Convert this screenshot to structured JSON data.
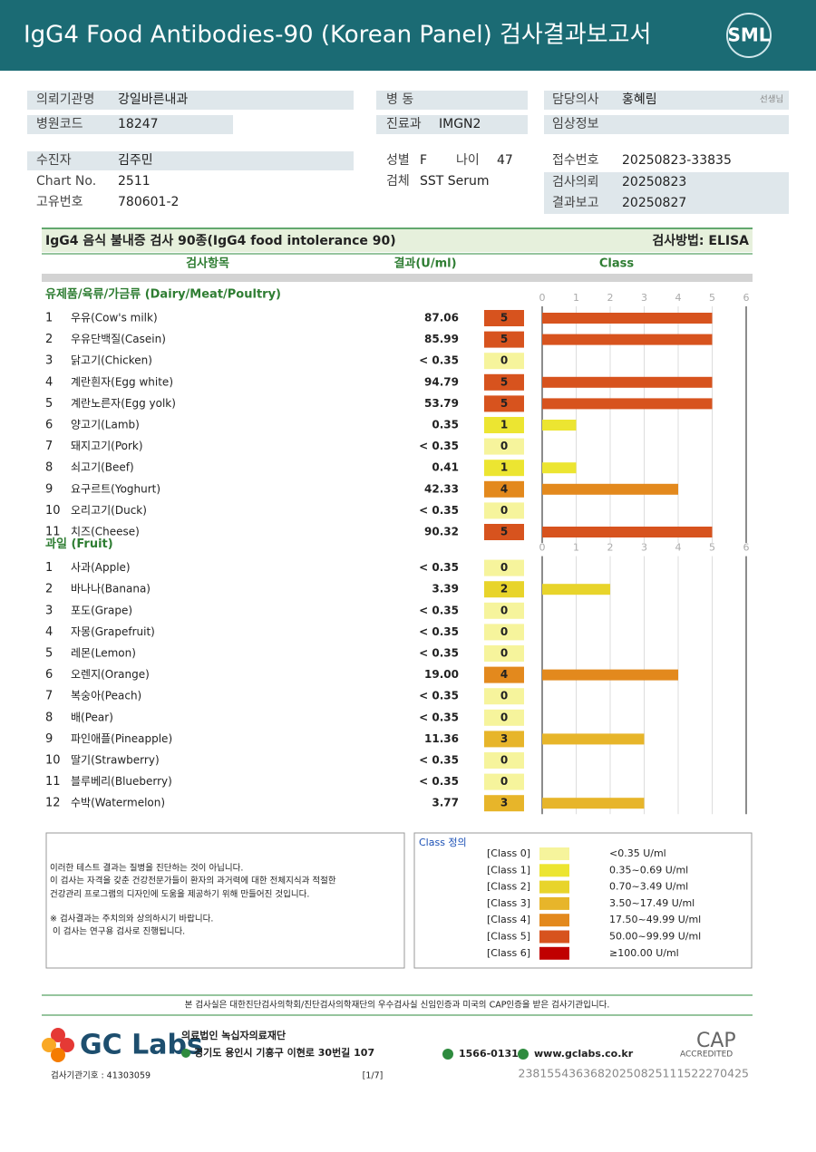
{
  "header": {
    "title": "IgG4 Food Antibodies-90 (Korean Panel) 검사결과보고서",
    "logo": "SML"
  },
  "info": [
    {
      "label": "의뢰기관명",
      "value": "강일바른내과"
    },
    {
      "label": "병원코드",
      "value": "18247"
    },
    {
      "label": "수진자",
      "value": "김주민"
    },
    {
      "label": "Chart No.",
      "value": "2511"
    },
    {
      "label": "고유번호",
      "value": "780601-2"
    },
    {
      "label": "병 동"
    },
    {
      "label": "진료과",
      "value": "IMGN2"
    },
    {
      "label": "성별",
      "value": "F"
    },
    {
      "label": "나이",
      "value": "47"
    },
    {
      "label": "검체",
      "value": "SST Serum"
    },
    {
      "label": "담당의사",
      "value": "홍혜림",
      "suffix": "선생님"
    },
    {
      "label": "임상정보"
    },
    {
      "label": "접수번호",
      "value": "20250823-33835"
    },
    {
      "label": "검사의뢰",
      "value": "20250823"
    },
    {
      "label": "결과보고",
      "value": "20250827"
    }
  ],
  "test": {
    "title": "IgG4 음식 불내증 검사 90종(IgG4 food intolerance 90)",
    "method": "검사방법: ELISA",
    "columns": [
      "검사항목",
      "결과(U/ml)",
      "Class"
    ],
    "axis_ticks": [
      0,
      1,
      2,
      3,
      4,
      5,
      6
    ],
    "groups": [
      {
        "name": "유제품/육류/가금류 (Dairy/Meat/Poultry)",
        "items": [
          {
            "no": 1,
            "name": "우유(Cow's milk)",
            "result": 87.06,
            "class": 5
          },
          {
            "no": 2,
            "name": "우유단백질(Casein)",
            "result": 85.99,
            "class": 5
          },
          {
            "no": 3,
            "name": "닭고기(Chicken)",
            "result": "< 0.35",
            "class": 0
          },
          {
            "no": 4,
            "name": "계란흰자(Egg white)",
            "result": 94.79,
            "class": 5
          },
          {
            "no": 5,
            "name": "계란노른자(Egg yolk)",
            "result": 53.79,
            "class": 5
          },
          {
            "no": 6,
            "name": "양고기(Lamb)",
            "result": 0.35,
            "class": 1
          },
          {
            "no": 7,
            "name": "돼지고기(Pork)",
            "result": "< 0.35",
            "class": 0
          },
          {
            "no": 8,
            "name": "쇠고기(Beef)",
            "result": 0.41,
            "class": 1
          },
          {
            "no": 9,
            "name": "요구르트(Yoghurt)",
            "result": 42.33,
            "class": 4
          },
          {
            "no": 10,
            "name": "오리고기(Duck)",
            "result": "< 0.35",
            "class": 0
          },
          {
            "no": 11,
            "name": "치즈(Cheese)",
            "result": 90.32,
            "class": 5
          }
        ]
      },
      {
        "name": "과일 (Fruit)",
        "items": [
          {
            "no": 1,
            "name": "사과(Apple)",
            "result": "< 0.35",
            "class": 0
          },
          {
            "no": 2,
            "name": "바나나(Banana)",
            "result": 3.39,
            "class": 2
          },
          {
            "no": 3,
            "name": "포도(Grape)",
            "result": "< 0.35",
            "class": 0
          },
          {
            "no": 4,
            "name": "자몽(Grapefruit)",
            "result": "< 0.35",
            "class": 0
          },
          {
            "no": 5,
            "name": "레몬(Lemon)",
            "result": "< 0.35",
            "class": 0
          },
          {
            "no": 6,
            "name": "오렌지(Orange)",
            "result": "19.00",
            "class": 4
          },
          {
            "no": 7,
            "name": "복숭아(Peach)",
            "result": "< 0.35",
            "class": 0
          },
          {
            "no": 8,
            "name": "배(Pear)",
            "result": "< 0.35",
            "class": 0
          },
          {
            "no": 9,
            "name": "파인애플(Pineapple)",
            "result": 11.36,
            "class": 3
          },
          {
            "no": 10,
            "name": "딸기(Strawberry)",
            "result": "< 0.35",
            "class": 0
          },
          {
            "no": 11,
            "name": "블루베리(Blueberry)",
            "result": "< 0.35",
            "class": 0
          },
          {
            "no": 12,
            "name": "수박(Watermelon)",
            "result": 3.77,
            "class": 3
          }
        ]
      }
    ]
  },
  "notes": [
    "이러한 테스트 결과는 질병을 진단하는 것이 아닙니다.",
    "이 검사는 자격을 갖춘 건강전문가들이 환자의 과거력에 대한 전체지식과 적절한",
    "건강관리 프로그램의 디자인에 도움을 제공하기 위해 만들어진 것입니다.",
    "※ 검사결과는 주치의와 상의하시기 바랍니다.",
    "이 검사는 연구용 검사로 진행됩니다."
  ],
  "legend": {
    "title": "Class 정의",
    "classes": [
      {
        "label": "[Class 0]",
        "range": "<0.35 U/ml",
        "color": "#f6f49c"
      },
      {
        "label": "[Class 1]",
        "range": "0.35~0.69 U/ml",
        "color": "#ece531"
      },
      {
        "label": "[Class 2]",
        "range": "0.70~3.49 U/ml",
        "color": "#e8d42b"
      },
      {
        "label": "[Class 3]",
        "range": "3.50~17.49 U/ml",
        "color": "#e7b52a"
      },
      {
        "label": "[Class 4]",
        "range": "17.50~49.99 U/ml",
        "color": "#e3891d"
      },
      {
        "label": "[Class 5]",
        "range": "50.00~99.99 U/ml",
        "color": "#d7531e"
      },
      {
        "label": "[Class 6]",
        "range": "≥100.00 U/ml",
        "color": "#c00000"
      }
    ]
  },
  "footer": {
    "certification": "본 검사실은 대한진단검사의학회/진단검사의학재단의 우수검사실 신임인증과 미국의 CAP인증을 받은 검사기관입니다.",
    "company_logo": "GC Labs",
    "foundation": "의료법인 녹십자의료재단",
    "address": "경기도 용인시 기흥구 이현로 30번길 107",
    "phone": "1566-0131",
    "website": "www.gclabs.co.kr",
    "cap": "CAP",
    "cap_sub": "ACCREDITED",
    "institution_code": "검사기관기호 : 41303059",
    "page": "[1/7]",
    "barcode_number": "23815543636820250825111522270425"
  }
}
